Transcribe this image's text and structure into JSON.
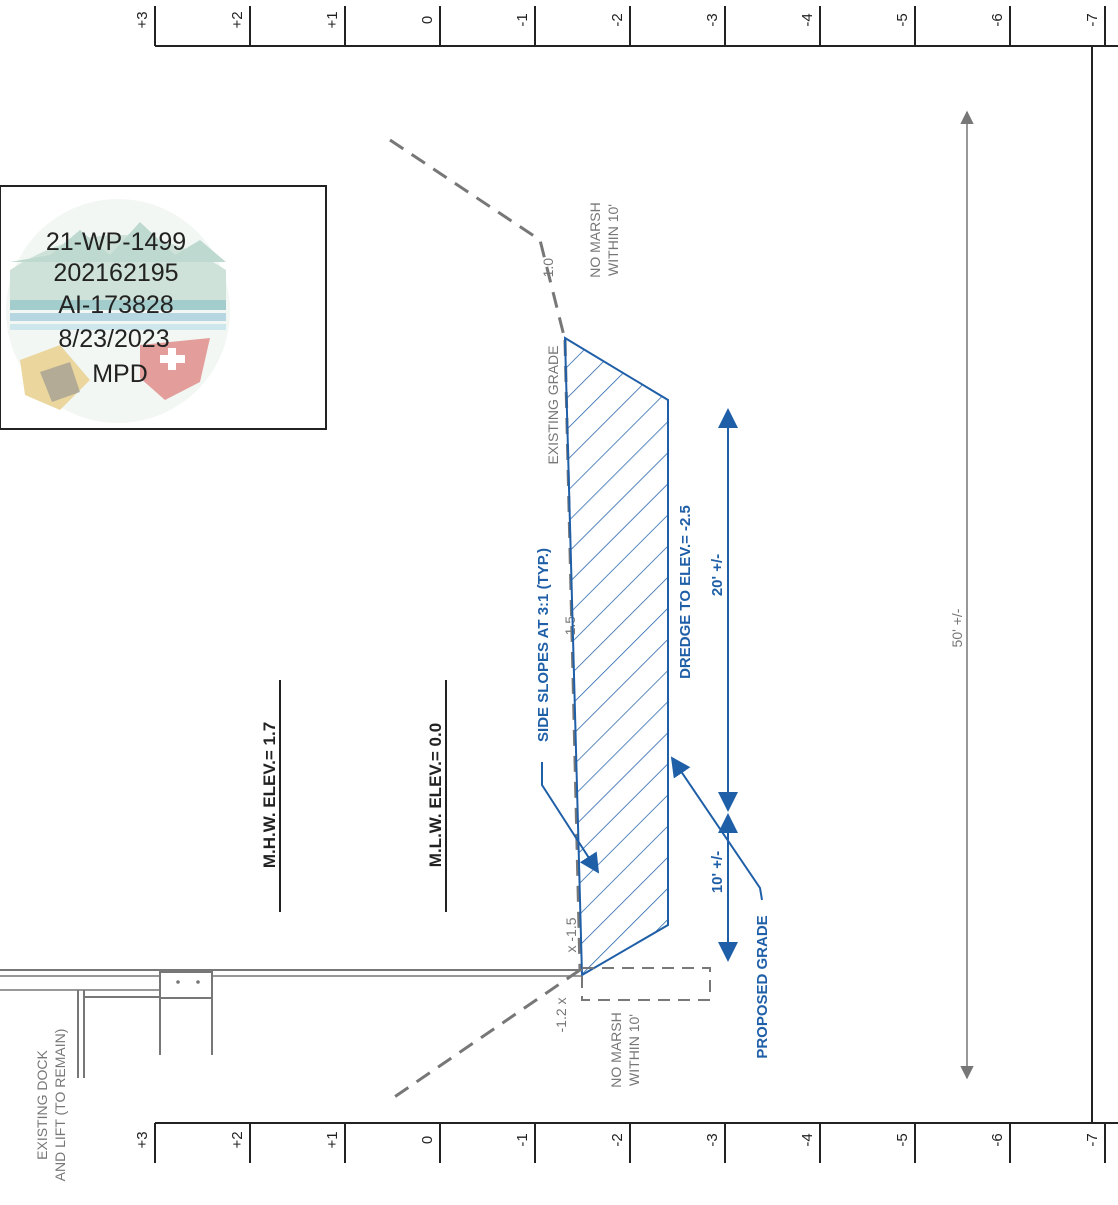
{
  "colors": {
    "ink": "#222222",
    "gray": "#777777",
    "blue": "#1f5fa8",
    "stamp_teal": "#4a9b9b",
    "stamp_red": "#c8403a",
    "stamp_gold": "#d8b040"
  },
  "elevation_scale": {
    "top_labels": [
      "+3",
      "+2",
      "+1",
      "0",
      "-1",
      "-2",
      "-3",
      "-4",
      "-5",
      "-6",
      "-7"
    ],
    "bottom_labels": [
      "+3",
      "+2",
      "+1",
      "0",
      "-1",
      "-2",
      "-3",
      "-4",
      "-5",
      "-6",
      "-7"
    ]
  },
  "stamp": {
    "permit_number": "21-WP-1499",
    "tracking_number": "202162195",
    "ai_number": "AI-173828",
    "date": "8/23/2023",
    "initials": "MPD"
  },
  "water_levels": {
    "mhw": "M.H.W. ELEV.= 1.7",
    "mlw": "M.L.W. ELEV.= 0.0"
  },
  "existing_grade": {
    "label": "EXISTING GRADE",
    "spot_top": "-1.0",
    "spot_mid": "-1.5",
    "spot_lower": "x -1.5",
    "spot_bottom": "-1.2 x"
  },
  "marsh": {
    "top_line1": "NO MARSH",
    "top_line2": "WITHIN 10'",
    "bottom_line1": "NO MARSH",
    "bottom_line2": "WITHIN 10'"
  },
  "dredge": {
    "side_slopes": "SIDE SLOPES AT 3:1 (TYP.)",
    "dredge_to": "DREDGE TO ELEV.= -2.5",
    "width_20": "20' +/-",
    "width_10": "10' +/-",
    "proposed_grade": "PROPOSED GRADE"
  },
  "overall_dimension": "50' +/-",
  "dock": {
    "line1": "EXISTING DOCK",
    "line2": "AND LIFT (TO REMAIN)"
  }
}
